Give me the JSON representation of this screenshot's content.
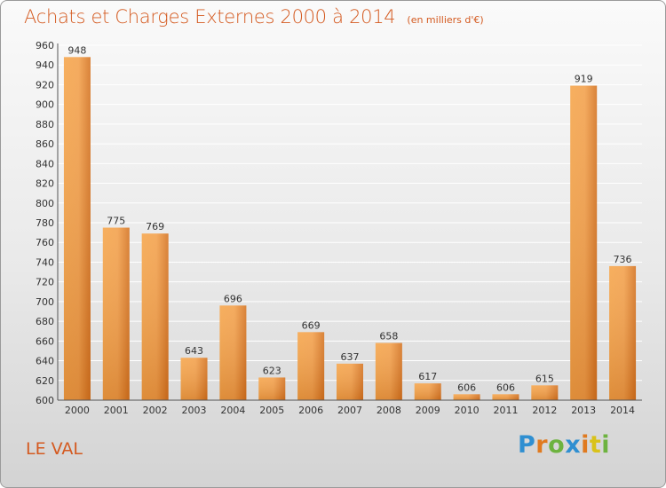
{
  "title": "Achats et Charges Externes 2000 à 2014",
  "subtitle": "(en milliers d'€)",
  "place_label": "LE VAL",
  "logo": {
    "text": "Proxiti",
    "letters": [
      {
        "ch": "P",
        "color": "#2f8fd1"
      },
      {
        "ch": "r",
        "color": "#e07a1f"
      },
      {
        "ch": "o",
        "color": "#6db33f"
      },
      {
        "ch": "x",
        "color": "#2f8fd1"
      },
      {
        "ch": "i",
        "color": "#e07a1f"
      },
      {
        "ch": "t",
        "color": "#d9c21a"
      },
      {
        "ch": "i",
        "color": "#6db33f"
      }
    ]
  },
  "colors": {
    "accent": "#d45a20",
    "bar_light": "#f7a84f",
    "bar_dark": "#d97520",
    "grid": "#ffffff",
    "axis": "#555555",
    "text": "#333333"
  },
  "chart_data": {
    "type": "bar",
    "categories": [
      "2000",
      "2001",
      "2002",
      "2003",
      "2004",
      "2005",
      "2006",
      "2007",
      "2008",
      "2009",
      "2010",
      "2011",
      "2012",
      "2013",
      "2014"
    ],
    "values": [
      948,
      775,
      769,
      643,
      696,
      623,
      669,
      637,
      658,
      617,
      606,
      606,
      615,
      919,
      736
    ],
    "ylim": [
      600,
      960
    ],
    "ytick_step": 20,
    "grid": true,
    "xlabel": "",
    "ylabel": ""
  }
}
